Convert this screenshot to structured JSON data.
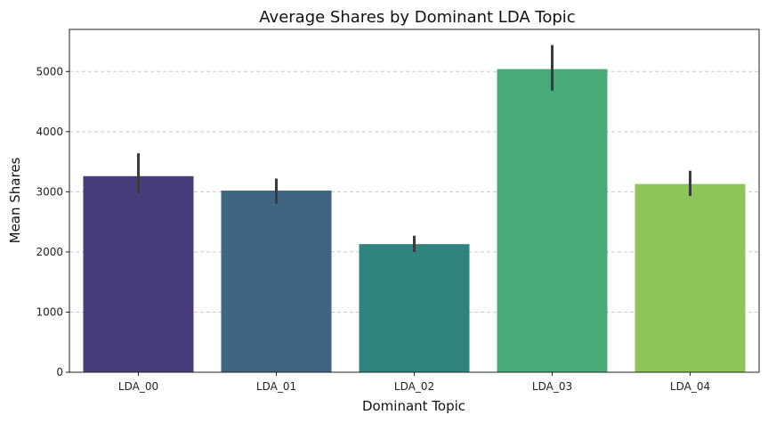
{
  "chart_data": {
    "type": "bar",
    "title": "Average Shares by Dominant LDA Topic",
    "xlabel": "Dominant Topic",
    "ylabel": "Mean Shares",
    "categories": [
      "LDA_00",
      "LDA_01",
      "LDA_02",
      "LDA_03",
      "LDA_04"
    ],
    "values": [
      3260,
      3020,
      2130,
      5040,
      3130
    ],
    "error_low": [
      2980,
      2800,
      2000,
      4680,
      2930
    ],
    "error_high": [
      3640,
      3220,
      2270,
      5440,
      3350
    ],
    "colors": [
      "#483d7a",
      "#3e6683",
      "#2f857e",
      "#47aa78",
      "#8ec558"
    ],
    "ylim": [
      0,
      5700
    ],
    "yticks": [
      0,
      1000,
      2000,
      3000,
      4000,
      5000
    ],
    "ytick_labels": [
      "0",
      "1000",
      "2000",
      "3000",
      "4000",
      "5000"
    ],
    "grid": "y-dashed",
    "legend": "none"
  }
}
